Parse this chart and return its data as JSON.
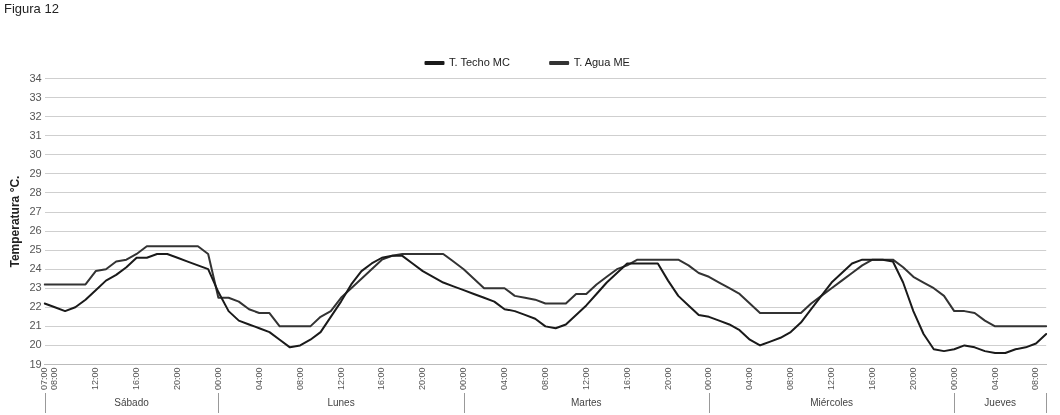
{
  "chart_data": {
    "type": "line",
    "title": "Figura 12",
    "ylabel": "Temperatura °C.",
    "categories": [
      "07:00",
      "08:00",
      null,
      null,
      null,
      "12:00",
      null,
      null,
      null,
      "16:00",
      null,
      null,
      null,
      "20:00",
      null,
      null,
      null,
      "00:00",
      null,
      null,
      null,
      "04:00",
      null,
      null,
      null,
      "08:00",
      null,
      null,
      null,
      "12:00",
      null,
      null,
      null,
      "16:00",
      null,
      null,
      null,
      "20:00",
      null,
      null,
      null,
      "00:00",
      null,
      null,
      null,
      "04:00",
      null,
      null,
      null,
      "08:00",
      null,
      null,
      null,
      "12:00",
      null,
      null,
      null,
      "16:00",
      null,
      null,
      null,
      "20:00",
      null,
      null,
      null,
      "00:00",
      null,
      null,
      null,
      "04:00",
      null,
      null,
      null,
      "08:00",
      null,
      null,
      null,
      "12:00",
      null,
      null,
      null,
      "16:00",
      null,
      null,
      null,
      "20:00",
      null,
      null,
      null,
      "00:00",
      null,
      null,
      null,
      "04:00",
      null,
      null,
      null,
      "08:00",
      null
    ],
    "annotations": [
      "Sábado",
      "Lunes",
      "Martes",
      "Miércoles",
      "Jueves"
    ],
    "ylim": [
      19,
      34
    ],
    "yticks": [
      19,
      20,
      21,
      22,
      23,
      24,
      25,
      26,
      27,
      28,
      29,
      30,
      31,
      32,
      33,
      34
    ],
    "grid": "y",
    "legend": "top",
    "marker": "none",
    "line_style": "solid",
    "series": [
      {
        "name": "T. Techo MC",
        "color": "#1a1a1a",
        "values": [
          22.2,
          22.0,
          21.8,
          22.0,
          22.4,
          22.9,
          23.4,
          23.7,
          24.1,
          24.6,
          24.6,
          24.8,
          24.8,
          24.6,
          24.4,
          24.2,
          24.0,
          22.8,
          21.8,
          21.3,
          21.1,
          20.9,
          20.7,
          20.3,
          19.9,
          20.0,
          20.3,
          20.7,
          21.5,
          22.3,
          23.2,
          23.9,
          24.3,
          24.6,
          24.7,
          24.7,
          24.3,
          23.9,
          23.6,
          23.3,
          23.1,
          22.9,
          22.7,
          22.5,
          22.3,
          21.9,
          21.8,
          21.6,
          21.4,
          21.0,
          20.9,
          21.1,
          21.6,
          22.1,
          22.7,
          23.3,
          23.8,
          24.3,
          24.3,
          24.3,
          24.3,
          23.4,
          22.6,
          22.1,
          21.6,
          21.5,
          21.3,
          21.1,
          20.8,
          20.3,
          20.0,
          20.2,
          20.4,
          20.7,
          21.2,
          21.9,
          22.6,
          23.3,
          23.8,
          24.3,
          24.5,
          24.5,
          24.5,
          24.4,
          23.3,
          21.8,
          20.6,
          19.8,
          19.7,
          19.8,
          20.0,
          19.9,
          19.7,
          19.6,
          19.6,
          19.8,
          19.9,
          20.1,
          20.6
        ]
      },
      {
        "name": "T. Agua ME",
        "color": "#333333",
        "values": [
          23.2,
          23.2,
          23.2,
          23.2,
          23.2,
          23.9,
          24.0,
          24.4,
          24.5,
          24.8,
          25.2,
          25.2,
          25.2,
          25.2,
          25.2,
          25.2,
          24.8,
          22.5,
          22.5,
          22.3,
          21.9,
          21.7,
          21.7,
          21.0,
          21.0,
          21.0,
          21.0,
          21.5,
          21.8,
          22.5,
          23.0,
          23.5,
          24.0,
          24.5,
          24.7,
          24.8,
          24.8,
          24.8,
          24.8,
          24.8,
          24.4,
          24.0,
          23.5,
          23.0,
          23.0,
          23.0,
          22.6,
          22.5,
          22.4,
          22.2,
          22.2,
          22.2,
          22.7,
          22.7,
          23.2,
          23.6,
          24.0,
          24.2,
          24.5,
          24.5,
          24.5,
          24.5,
          24.5,
          24.2,
          23.8,
          23.6,
          23.3,
          23.0,
          22.7,
          22.2,
          21.7,
          21.7,
          21.7,
          21.7,
          21.7,
          22.2,
          22.6,
          23.0,
          23.4,
          23.8,
          24.2,
          24.5,
          24.5,
          24.5,
          24.1,
          23.6,
          23.3,
          23.0,
          22.6,
          21.8,
          21.8,
          21.7,
          21.3,
          21.0,
          21.0,
          21.0,
          21.0,
          21.0,
          21.0
        ]
      }
    ]
  }
}
